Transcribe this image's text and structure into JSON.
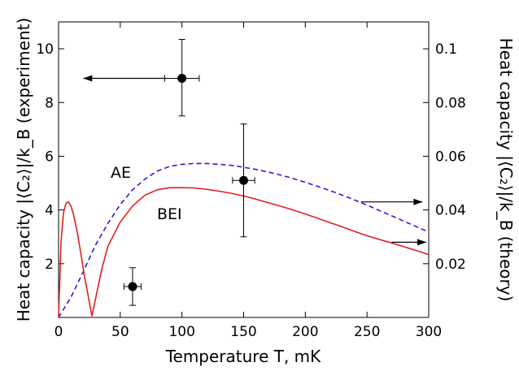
{
  "chart_data": {
    "type": "line",
    "xlabel": "Temperature T, mK",
    "ylabel_left": "Heat capacity |⟨C₂⟩|/k_B (experiment)",
    "ylabel_right": "Heat capacity |⟨C₂⟩|/k_B (theory)",
    "xlim": [
      0,
      300
    ],
    "ylim_left": [
      0,
      11
    ],
    "ylim_right": [
      0,
      0.11
    ],
    "x_ticks": [
      0,
      50,
      100,
      150,
      200,
      250,
      300
    ],
    "y_ticks_left": [
      2,
      4,
      6,
      8,
      10
    ],
    "y_ticks_right": [
      0.02,
      0.04,
      0.06,
      0.08,
      0.1
    ],
    "x_tick_labels": [
      "0",
      "50",
      "100",
      "150",
      "200",
      "250",
      "300"
    ],
    "y_tick_labels_left": [
      "2",
      "4",
      "6",
      "8",
      "10"
    ],
    "y_tick_labels_right": [
      "0.02",
      "0.04",
      "0.06",
      "0.08",
      "0.1"
    ],
    "grid": false,
    "annotations": {
      "ae": "AE",
      "bei": "BEI"
    },
    "series": [
      {
        "name": "AE",
        "axis": "right",
        "style": "dashed",
        "color": "#2020e0",
        "x": [
          0,
          10,
          20,
          30,
          40,
          50,
          60,
          70,
          80,
          90,
          100,
          110,
          120,
          130,
          140,
          150,
          160,
          170,
          180,
          190,
          200,
          210,
          220,
          230,
          240,
          250,
          260,
          270,
          280,
          290,
          300
        ],
        "y": [
          0.0,
          0.0075,
          0.017,
          0.027,
          0.035,
          0.042,
          0.0475,
          0.0515,
          0.0545,
          0.0562,
          0.057,
          0.0573,
          0.0573,
          0.057,
          0.0566,
          0.0559,
          0.0551,
          0.0541,
          0.053,
          0.0517,
          0.0503,
          0.0488,
          0.0472,
          0.0455,
          0.0437,
          0.0418,
          0.0398,
          0.0378,
          0.0358,
          0.0338,
          0.0318
        ]
      },
      {
        "name": "BEI",
        "axis": "right",
        "style": "solid",
        "color": "#e02020",
        "x": [
          0,
          2,
          4,
          6,
          8,
          10,
          12,
          15,
          18,
          21,
          24,
          27,
          30,
          35,
          40,
          50,
          60,
          70,
          80,
          90,
          100,
          110,
          120,
          130,
          140,
          150,
          160,
          170,
          180,
          190,
          200,
          210,
          220,
          230,
          240,
          250,
          260,
          270,
          280,
          290,
          300
        ],
        "y": [
          0.0,
          0.028,
          0.039,
          0.0425,
          0.043,
          0.0415,
          0.0385,
          0.032,
          0.024,
          0.0155,
          0.008,
          0.0005,
          0.007,
          0.018,
          0.0265,
          0.0355,
          0.0415,
          0.0455,
          0.0475,
          0.0483,
          0.0483,
          0.0482,
          0.0477,
          0.047,
          0.0462,
          0.0452,
          0.044,
          0.0427,
          0.0414,
          0.04,
          0.0385,
          0.0369,
          0.0353,
          0.0337,
          0.032,
          0.0304,
          0.029,
          0.0277,
          0.0263,
          0.0249,
          0.0234
        ]
      }
    ],
    "points": [
      {
        "name": "experiment",
        "axis": "left",
        "x": 60,
        "y": 1.15,
        "xerr": 7,
        "yerr_low": 0.7,
        "yerr_high": 0.7
      },
      {
        "name": "experiment",
        "axis": "left",
        "x": 100,
        "y": 8.9,
        "xerr": 14,
        "yerr_low": 1.4,
        "yerr_high": 1.45
      },
      {
        "name": "experiment",
        "axis": "left",
        "x": 150,
        "y": 5.1,
        "xerr": 9,
        "yerr_low": 2.1,
        "yerr_high": 2.1
      }
    ],
    "arrows": [
      {
        "direction": "left",
        "axis": "left",
        "x_from": 87,
        "x_to": 20,
        "y": 8.9
      },
      {
        "direction": "right",
        "axis": "left",
        "x_from": 245,
        "x_to": 295,
        "y": 4.3
      },
      {
        "direction": "right",
        "axis": "left",
        "x_from": 270,
        "x_to": 298,
        "y": 2.8
      }
    ]
  }
}
